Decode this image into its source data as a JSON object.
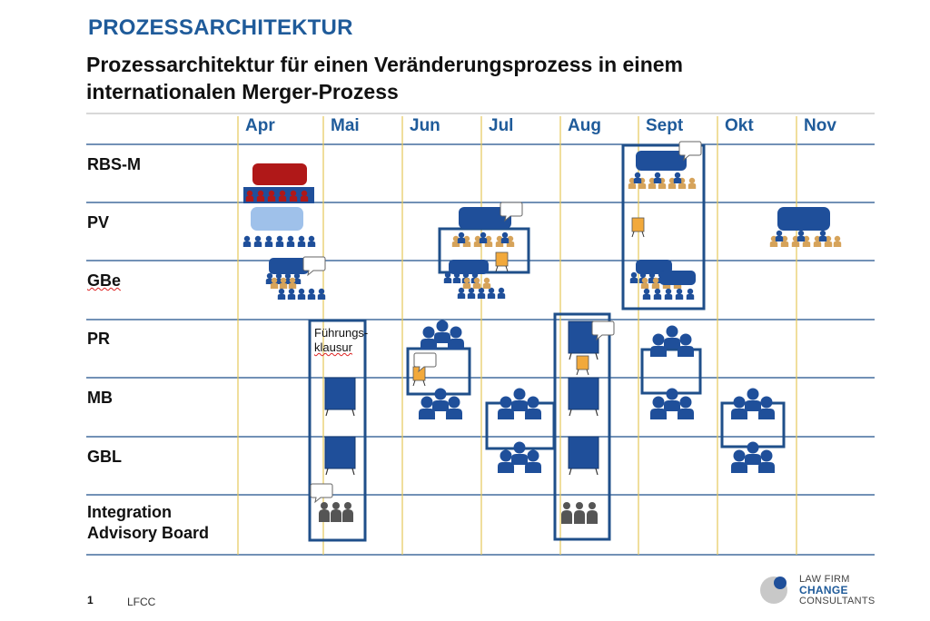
{
  "header": {
    "brand": "PROZESSARCHITEKTUR",
    "title_line1": "Prozessarchitektur für einen Veränderungsprozess in einem",
    "title_line2": "internationalen Merger-Prozess"
  },
  "months": [
    "Apr",
    "Mai",
    "Jun",
    "Jul",
    "Aug",
    "Sept",
    "Okt",
    "Nov"
  ],
  "rows": [
    "RBS-M",
    "PV",
    "GBe",
    "PR",
    "MB",
    "GBL"
  ],
  "last_row": {
    "line1": "Integration",
    "line2": "Advisory Board"
  },
  "note": {
    "line1": "Führungs-",
    "line2": "klausur"
  },
  "footer": {
    "page_number": "1",
    "label": "LFCC"
  },
  "logo": {
    "line1": "LAW FIRM",
    "line2": "CHANGE",
    "line3": "CONSULTANTS"
  },
  "colors": {
    "brand_blue": "#1f5b9a",
    "people_blue": "#1f4f9a",
    "frame_blue": "#1f4f8a",
    "board_red": "#b01818",
    "people_light": "#9fc1ea",
    "seat_tan": "#d6a35a",
    "flip_orange": "#f2a93b",
    "advisory_grey": "#555555",
    "month_line": "#e5c85a"
  },
  "icons": [
    "board-table-icon",
    "meeting-group-icon",
    "speech-bubble-icon",
    "flipchart-icon",
    "people-cluster-icon",
    "screen-icon",
    "advisory-group-icon"
  ]
}
